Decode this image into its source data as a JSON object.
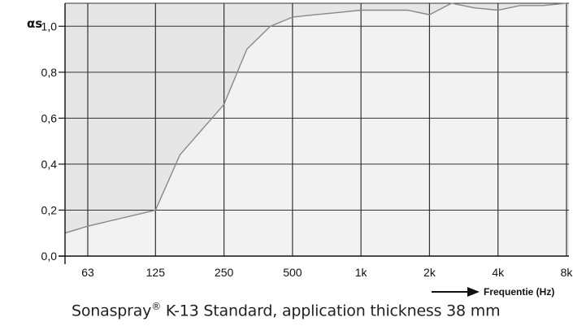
{
  "chart_data": {
    "type": "area",
    "ylabel": "αs",
    "xlabel": "Frequentie (Hz)",
    "x_scale": "log",
    "x_ticks": [
      {
        "value": 63,
        "label": "63"
      },
      {
        "value": 125,
        "label": "125"
      },
      {
        "value": 250,
        "label": "250"
      },
      {
        "value": 500,
        "label": "500"
      },
      {
        "value": 1000,
        "label": "1k"
      },
      {
        "value": 2000,
        "label": "2k"
      },
      {
        "value": 4000,
        "label": "4k"
      },
      {
        "value": 8000,
        "label": "8k"
      }
    ],
    "y_ticks": [
      {
        "value": 0.0,
        "label": "0,0"
      },
      {
        "value": 0.2,
        "label": "0,2"
      },
      {
        "value": 0.4,
        "label": "0,4"
      },
      {
        "value": 0.6,
        "label": "0,6"
      },
      {
        "value": 0.8,
        "label": "0,8"
      },
      {
        "value": 1.0,
        "label": "1,0"
      }
    ],
    "xlim": [
      50,
      8000
    ],
    "ylim": [
      0,
      1.1
    ],
    "grid": true,
    "series": [
      {
        "x": [
          50,
          63,
          125,
          160,
          250,
          315,
          400,
          500,
          630,
          800,
          1000,
          1250,
          1600,
          2000,
          2500,
          3150,
          4000,
          5000,
          6300,
          8000
        ],
        "values": [
          0.1,
          0.13,
          0.2,
          0.44,
          0.66,
          0.9,
          1.0,
          1.04,
          1.05,
          1.06,
          1.07,
          1.07,
          1.07,
          1.05,
          1.1,
          1.08,
          1.07,
          1.09,
          1.09,
          1.1
        ]
      }
    ],
    "colors": {
      "curve_fill": "#f2f2f2",
      "above_fill": "#e6e6e6",
      "curve_line": "#888888",
      "grid": "#9a9a9a",
      "grid_dark": "#333333"
    }
  },
  "caption": {
    "product": "Sonaspray",
    "reg": "®",
    "rest": " K-13 Standard, application thickness 38 mm"
  }
}
